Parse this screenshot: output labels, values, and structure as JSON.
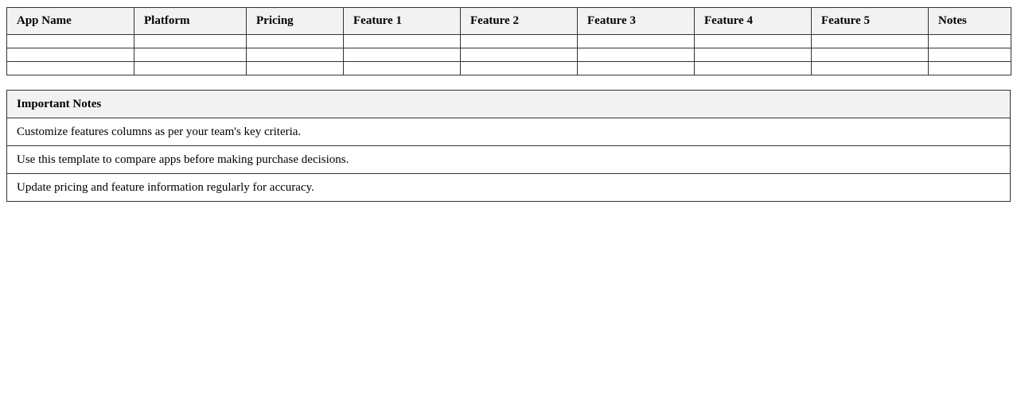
{
  "comparison_table": {
    "headers": [
      "App Name",
      "Platform",
      "Pricing",
      "Feature 1",
      "Feature 2",
      "Feature 3",
      "Feature 4",
      "Feature 5",
      "Notes"
    ],
    "rows": [
      [
        "",
        "",
        "",
        "",
        "",
        "",
        "",
        "",
        ""
      ],
      [
        "",
        "",
        "",
        "",
        "",
        "",
        "",
        "",
        ""
      ],
      [
        "",
        "",
        "",
        "",
        "",
        "",
        "",
        "",
        ""
      ]
    ]
  },
  "notes": {
    "title": "Important Notes",
    "items": [
      "Customize features columns as per your team's key criteria.",
      "Use this template to compare apps before making purchase decisions.",
      "Update pricing and feature information regularly for accuracy."
    ]
  }
}
